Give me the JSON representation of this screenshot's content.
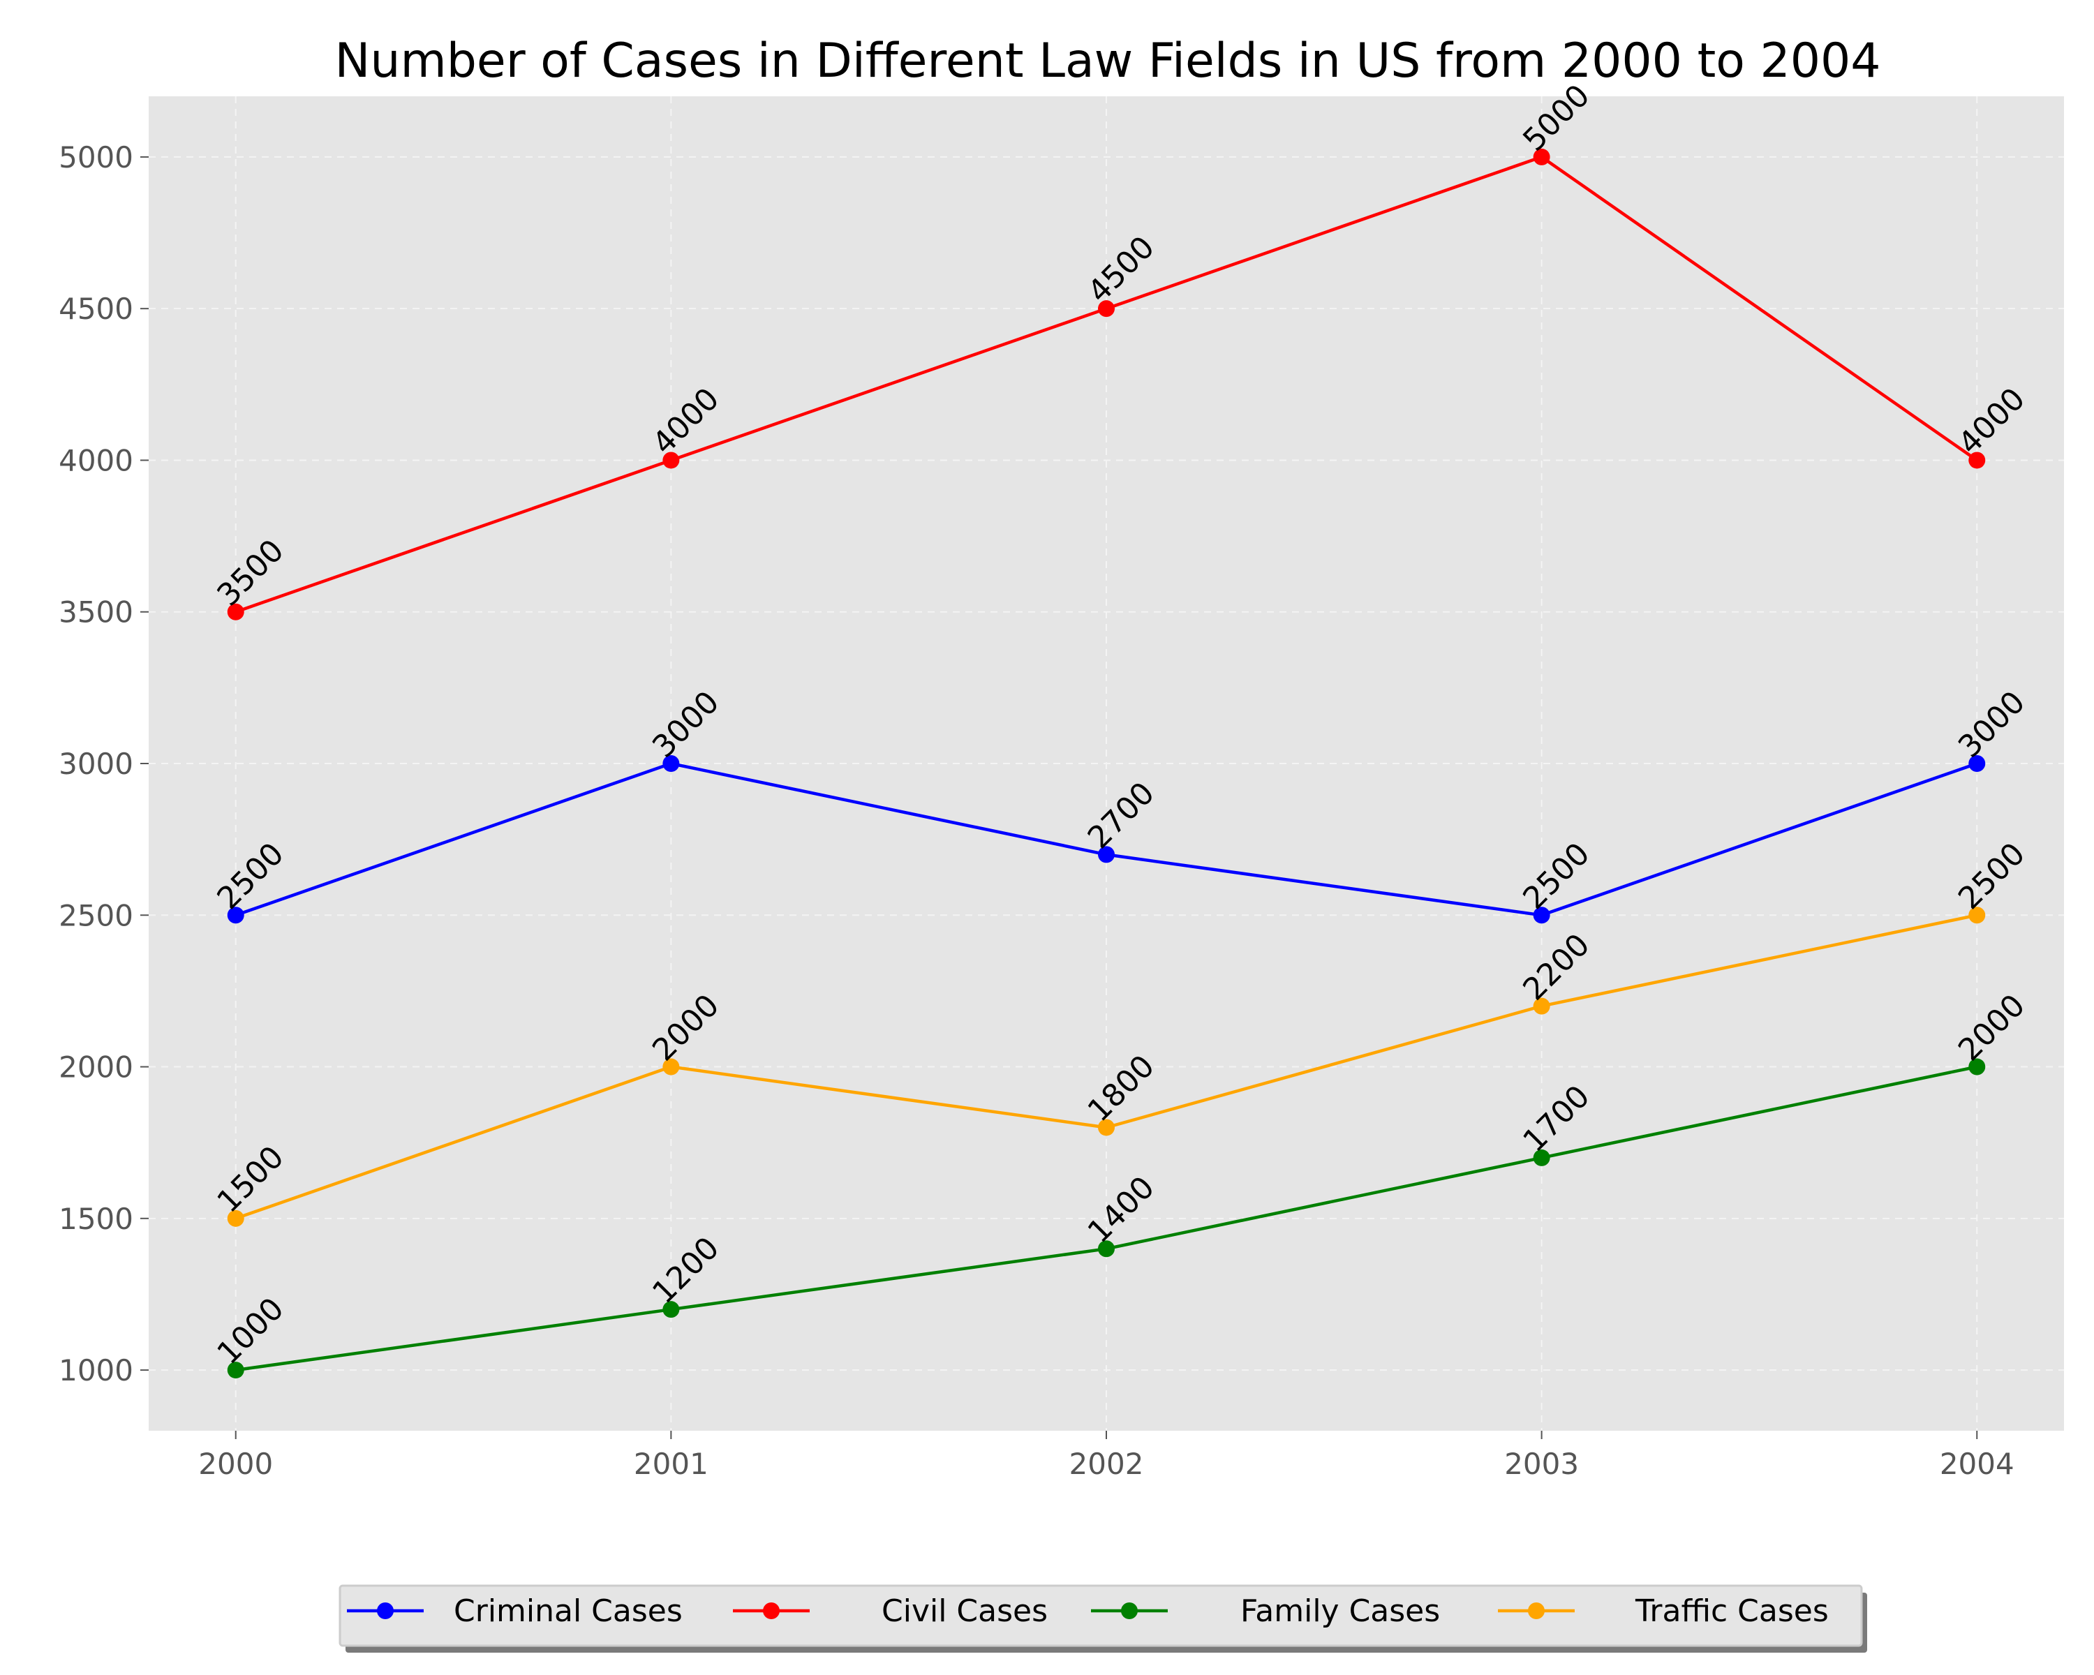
{
  "chart_data": {
    "type": "line",
    "title": "Number of Cases in Different Law Fields in US from 2000 to 2004",
    "xlabel": "",
    "ylabel": "",
    "x": [
      2000,
      2001,
      2002,
      2003,
      2004
    ],
    "x_tick_labels": [
      "2000",
      "2001",
      "2002",
      "2003",
      "2004"
    ],
    "y_ticks": [
      1000,
      1500,
      2000,
      2500,
      3000,
      3500,
      4000,
      4500,
      5000
    ],
    "y_tick_labels": [
      "1000",
      "1500",
      "2000",
      "2500",
      "3000",
      "3500",
      "4000",
      "4500",
      "5000"
    ],
    "xlim": [
      1999.8,
      2004.2
    ],
    "ylim": [
      800,
      5200
    ],
    "grid": true,
    "legend_position": "bottom-center",
    "series": [
      {
        "name": "Criminal Cases",
        "color": "#0000ff",
        "values": [
          2500,
          3000,
          2700,
          2500,
          3000
        ],
        "labels": [
          "2500",
          "3000",
          "2700",
          "2500",
          "3000"
        ]
      },
      {
        "name": "Civil Cases",
        "color": "#ff0000",
        "values": [
          3500,
          4000,
          4500,
          5000,
          4000
        ],
        "labels": [
          "3500",
          "4000",
          "4500",
          "5000",
          "4000"
        ]
      },
      {
        "name": "Family Cases",
        "color": "#008000",
        "values": [
          1000,
          1200,
          1400,
          1700,
          2000
        ],
        "labels": [
          "1000",
          "1200",
          "1400",
          "1700",
          "2000"
        ]
      },
      {
        "name": "Traffic Cases",
        "color": "#ffa500",
        "values": [
          1500,
          2000,
          1800,
          2200,
          2500
        ],
        "labels": [
          "1500",
          "2000",
          "1800",
          "2200",
          "2500"
        ]
      }
    ]
  }
}
